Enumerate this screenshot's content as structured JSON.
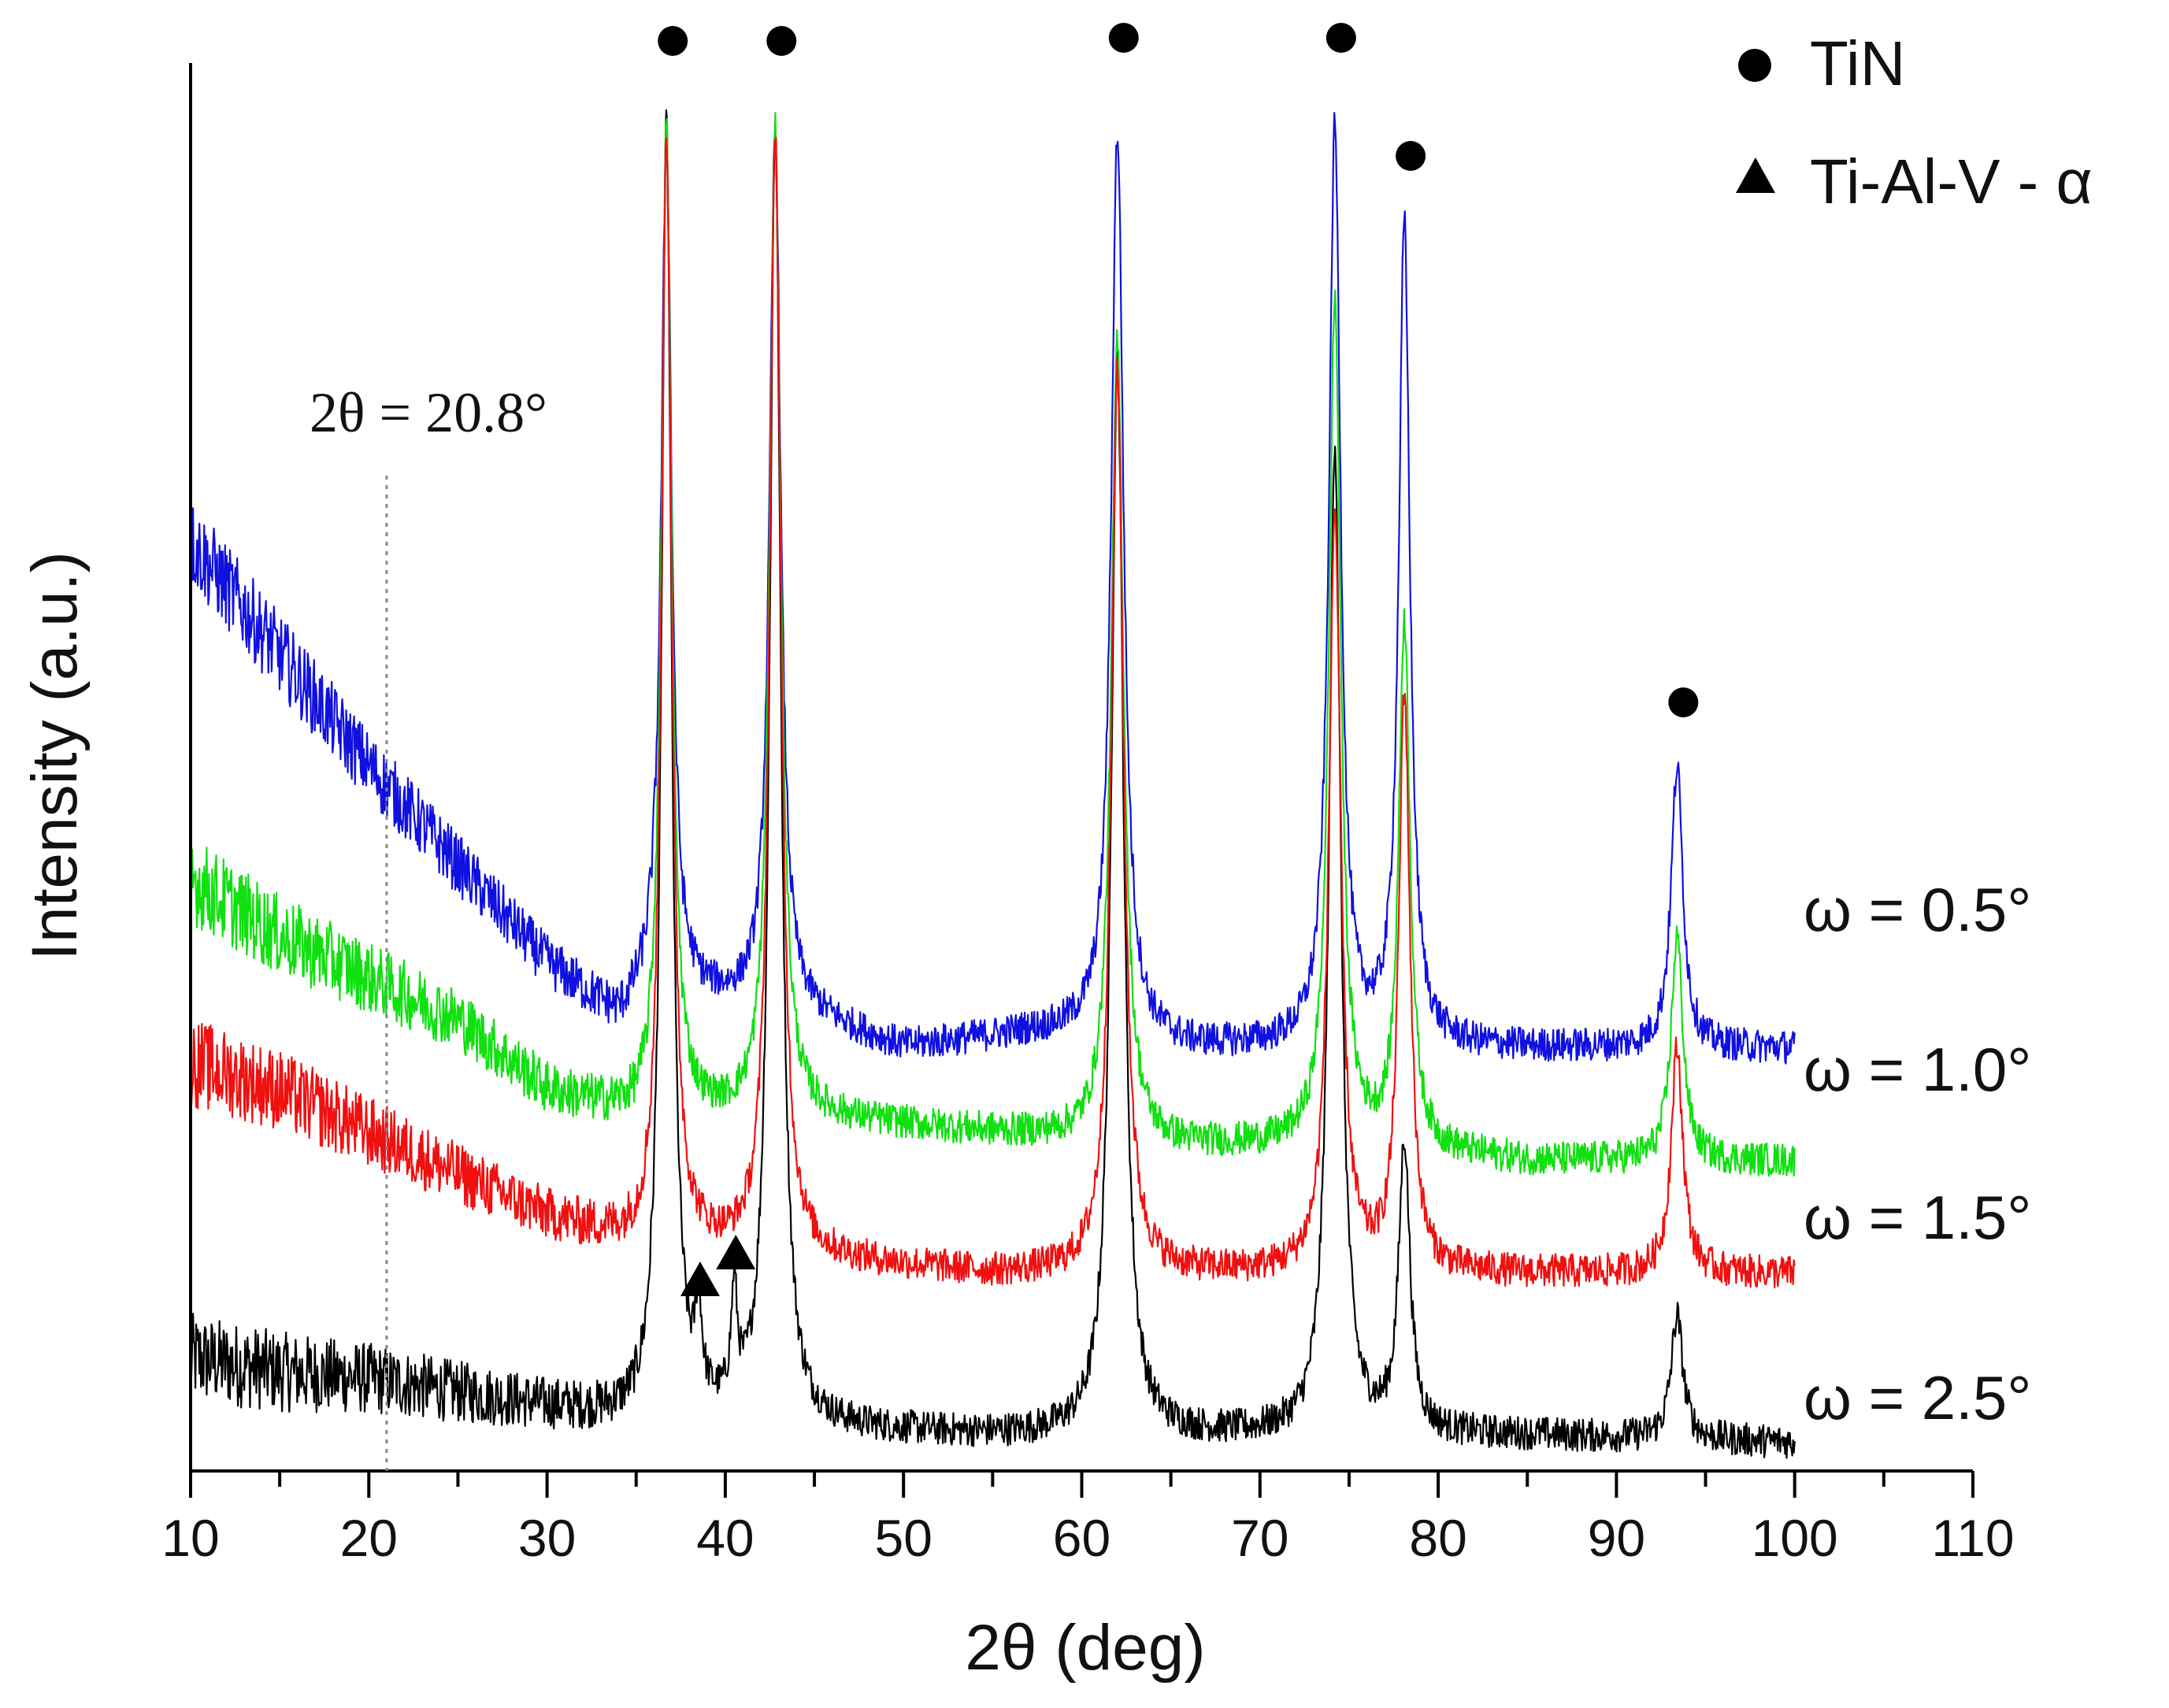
{
  "chart_data": {
    "type": "line",
    "title": "",
    "xlabel": "2θ (deg)",
    "ylabel": "Intensity (a.u.)",
    "xlim": [
      10,
      110
    ],
    "xticks": [
      10,
      20,
      30,
      40,
      50,
      60,
      70,
      80,
      90,
      100,
      110
    ],
    "y_axis_values_shown": false,
    "grid": false,
    "legend": {
      "position": "top-right",
      "entries": [
        {
          "marker": "circle",
          "label": "TiN"
        },
        {
          "marker": "triangle",
          "label": "Ti-Al-V - α"
        }
      ]
    },
    "tin_peaks_2theta": [
      36.7,
      42.8,
      62.0,
      74.2,
      78.1,
      93.4
    ],
    "ti_al_v_alpha_peaks_2theta": [
      38.5,
      40.5
    ],
    "annotation": {
      "text": "2θ = 20.8°",
      "x": 20.8
    },
    "series": [
      {
        "name": "ω = 0.5°",
        "color": "#1010e0",
        "x_range": [
          10,
          100
        ],
        "baseline_points": [
          [
            10,
            0.66
          ],
          [
            15,
            0.58
          ],
          [
            20,
            0.5
          ],
          [
            25,
            0.43
          ],
          [
            30,
            0.36
          ],
          [
            34,
            0.32
          ],
          [
            36,
            0.34
          ],
          [
            45,
            0.32
          ],
          [
            50,
            0.3
          ],
          [
            57,
            0.31
          ],
          [
            60,
            0.31
          ],
          [
            66,
            0.3
          ],
          [
            72,
            0.3
          ],
          [
            80,
            0.3
          ],
          [
            90,
            0.3
          ],
          [
            100,
            0.3
          ]
        ],
        "peaks": [
          {
            "x": 36.7,
            "height": 0.95,
            "width": 0.35
          },
          {
            "x": 42.8,
            "height": 0.95,
            "width": 0.38
          },
          {
            "x": 62.0,
            "height": 0.95,
            "width": 0.42
          },
          {
            "x": 74.2,
            "height": 0.95,
            "width": 0.4
          },
          {
            "x": 78.1,
            "height": 0.88,
            "width": 0.38
          },
          {
            "x": 93.4,
            "height": 0.5,
            "width": 0.4
          }
        ]
      },
      {
        "name": "ω = 1.0°",
        "color": "#10e010",
        "x_range": [
          10,
          100
        ],
        "baseline_points": [
          [
            10,
            0.42
          ],
          [
            15,
            0.38
          ],
          [
            20,
            0.35
          ],
          [
            25,
            0.32
          ],
          [
            30,
            0.27
          ],
          [
            35,
            0.25
          ],
          [
            45,
            0.25
          ],
          [
            55,
            0.24
          ],
          [
            65,
            0.23
          ],
          [
            75,
            0.23
          ],
          [
            85,
            0.22
          ],
          [
            100,
            0.22
          ]
        ],
        "peaks": [
          {
            "x": 36.7,
            "height": 0.95,
            "width": 0.35
          },
          {
            "x": 42.8,
            "height": 0.95,
            "width": 0.38
          },
          {
            "x": 62.0,
            "height": 0.8,
            "width": 0.42
          },
          {
            "x": 74.2,
            "height": 0.83,
            "width": 0.4
          },
          {
            "x": 78.1,
            "height": 0.6,
            "width": 0.38
          },
          {
            "x": 93.4,
            "height": 0.38,
            "width": 0.4
          }
        ]
      },
      {
        "name": "ω = 1.5°",
        "color": "#f01010",
        "x_range": [
          10,
          100
        ],
        "baseline_points": [
          [
            10,
            0.29
          ],
          [
            15,
            0.27
          ],
          [
            20,
            0.24
          ],
          [
            25,
            0.21
          ],
          [
            30,
            0.18
          ],
          [
            35,
            0.16
          ],
          [
            45,
            0.15
          ],
          [
            55,
            0.14
          ],
          [
            65,
            0.14
          ],
          [
            75,
            0.14
          ],
          [
            85,
            0.14
          ],
          [
            100,
            0.14
          ]
        ],
        "peaks": [
          {
            "x": 36.7,
            "height": 0.95,
            "width": 0.35
          },
          {
            "x": 42.8,
            "height": 0.95,
            "width": 0.38
          },
          {
            "x": 62.0,
            "height": 0.78,
            "width": 0.42
          },
          {
            "x": 74.2,
            "height": 0.68,
            "width": 0.4
          },
          {
            "x": 78.1,
            "height": 0.55,
            "width": 0.38
          },
          {
            "x": 93.4,
            "height": 0.3,
            "width": 0.4
          }
        ]
      },
      {
        "name": "ω = 2.5°",
        "color": "#000000",
        "x_range": [
          10,
          100
        ],
        "baseline_points": [
          [
            10,
            0.08
          ],
          [
            15,
            0.07
          ],
          [
            20,
            0.065
          ],
          [
            25,
            0.055
          ],
          [
            30,
            0.045
          ],
          [
            35,
            0.035
          ],
          [
            45,
            0.03
          ],
          [
            55,
            0.025
          ],
          [
            65,
            0.025
          ],
          [
            75,
            0.025
          ],
          [
            85,
            0.025
          ],
          [
            100,
            0.02
          ]
        ],
        "peaks": [
          {
            "x": 36.7,
            "height": 0.95,
            "width": 0.35
          },
          {
            "x": 38.5,
            "height": 0.1,
            "width": 0.2
          },
          {
            "x": 40.5,
            "height": 0.11,
            "width": 0.2
          },
          {
            "x": 42.8,
            "height": 0.95,
            "width": 0.38
          },
          {
            "x": 62.0,
            "height": 0.79,
            "width": 0.42
          },
          {
            "x": 74.2,
            "height": 0.73,
            "width": 0.4
          },
          {
            "x": 78.1,
            "height": 0.23,
            "width": 0.38
          },
          {
            "x": 93.4,
            "height": 0.11,
            "width": 0.4
          }
        ]
      }
    ]
  }
}
